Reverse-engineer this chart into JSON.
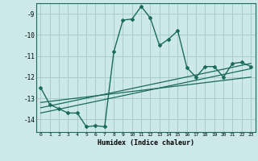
{
  "title": "",
  "xlabel": "Humidex (Indice chaleur)",
  "background_color": "#cce8e8",
  "grid_color": "#aacccc",
  "line_color": "#1a6b5a",
  "xlim": [
    -0.5,
    23.5
  ],
  "ylim": [
    -14.6,
    -8.5
  ],
  "xticks": [
    0,
    1,
    2,
    3,
    4,
    5,
    6,
    7,
    8,
    9,
    10,
    11,
    12,
    13,
    14,
    15,
    16,
    17,
    18,
    19,
    20,
    21,
    22,
    23
  ],
  "yticks": [
    -9,
    -10,
    -11,
    -12,
    -13,
    -14
  ],
  "main_series_x": [
    0,
    1,
    2,
    3,
    4,
    5,
    6,
    7,
    8,
    9,
    10,
    11,
    12,
    13,
    14,
    15,
    16,
    17,
    18,
    19,
    20,
    21,
    22,
    23
  ],
  "main_series_y": [
    -12.5,
    -13.3,
    -13.5,
    -13.7,
    -13.7,
    -14.35,
    -14.3,
    -14.35,
    -10.8,
    -9.3,
    -9.25,
    -8.65,
    -9.2,
    -10.5,
    -10.2,
    -9.8,
    -11.55,
    -12.0,
    -11.5,
    -11.5,
    -12.0,
    -11.35,
    -11.3,
    -11.5
  ],
  "reg_lines": [
    {
      "x": [
        0,
        23
      ],
      "y": [
        -13.7,
        -11.6
      ]
    },
    {
      "x": [
        0,
        23
      ],
      "y": [
        -13.45,
        -11.35
      ]
    },
    {
      "x": [
        0,
        23
      ],
      "y": [
        -13.2,
        -12.0
      ]
    }
  ]
}
